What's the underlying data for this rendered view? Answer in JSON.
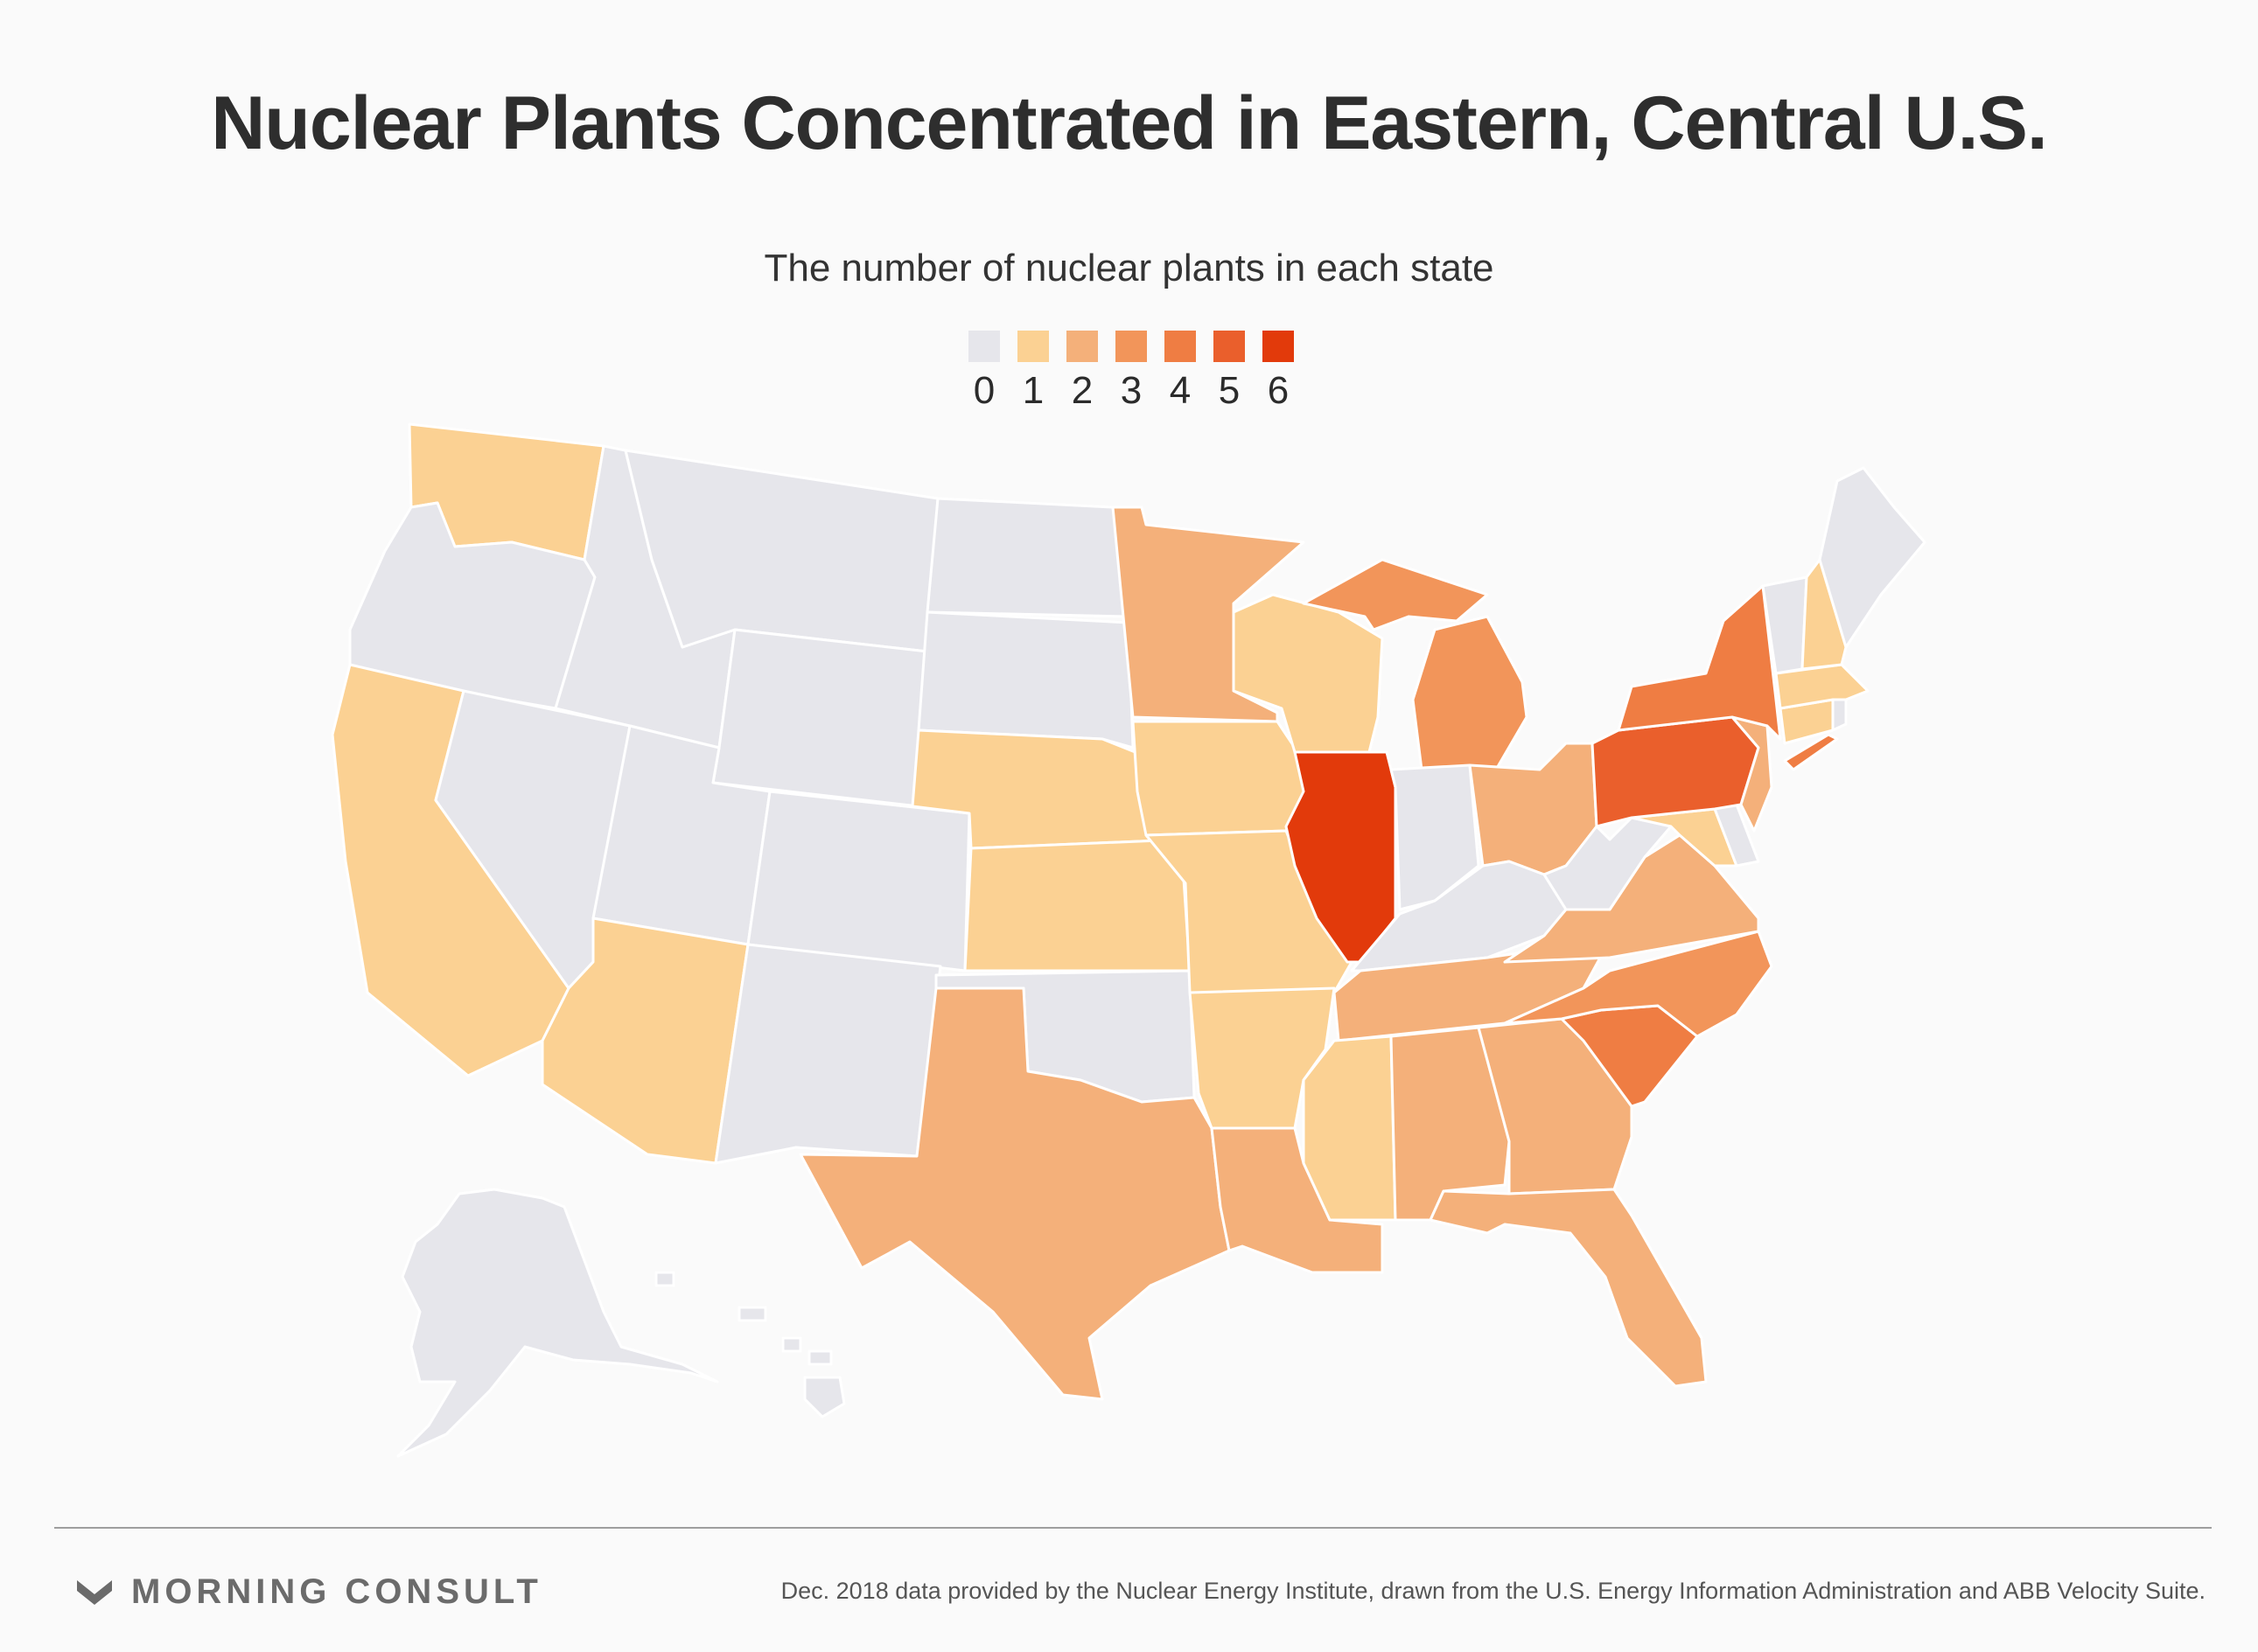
{
  "title": "Nuclear Plants Concentrated in Eastern, Central U.S.",
  "subtitle": "The number of nuclear plants in each state",
  "legend": {
    "items": [
      {
        "label": "0",
        "color": "#e6e6eb"
      },
      {
        "label": "1",
        "color": "#fbd193"
      },
      {
        "label": "2",
        "color": "#f4b07a"
      },
      {
        "label": "3",
        "color": "#f2955a"
      },
      {
        "label": "4",
        "color": "#ef7d43"
      },
      {
        "label": "5",
        "color": "#ea5f2c"
      },
      {
        "label": "6",
        "color": "#e23a0b"
      }
    ]
  },
  "chart_data": {
    "type": "choropleth",
    "value_range": [
      0,
      6
    ],
    "regions": [
      {
        "state": "Washington",
        "value": 1
      },
      {
        "state": "Oregon",
        "value": 0
      },
      {
        "state": "California",
        "value": 1
      },
      {
        "state": "Nevada",
        "value": 0
      },
      {
        "state": "Idaho",
        "value": 0
      },
      {
        "state": "Montana",
        "value": 0
      },
      {
        "state": "Wyoming",
        "value": 0
      },
      {
        "state": "Utah",
        "value": 0
      },
      {
        "state": "Arizona",
        "value": 1
      },
      {
        "state": "Colorado",
        "value": 0
      },
      {
        "state": "New Mexico",
        "value": 0
      },
      {
        "state": "North Dakota",
        "value": 0
      },
      {
        "state": "South Dakota",
        "value": 0
      },
      {
        "state": "Nebraska",
        "value": 1
      },
      {
        "state": "Kansas",
        "value": 1
      },
      {
        "state": "Oklahoma",
        "value": 0
      },
      {
        "state": "Texas",
        "value": 2
      },
      {
        "state": "Minnesota",
        "value": 2
      },
      {
        "state": "Iowa",
        "value": 1
      },
      {
        "state": "Missouri",
        "value": 1
      },
      {
        "state": "Arkansas",
        "value": 1
      },
      {
        "state": "Louisiana",
        "value": 2
      },
      {
        "state": "Wisconsin",
        "value": 1
      },
      {
        "state": "Illinois",
        "value": 6
      },
      {
        "state": "Michigan",
        "value": 3
      },
      {
        "state": "Indiana",
        "value": 0
      },
      {
        "state": "Ohio",
        "value": 2
      },
      {
        "state": "Kentucky",
        "value": 0
      },
      {
        "state": "Tennessee",
        "value": 2
      },
      {
        "state": "Mississippi",
        "value": 1
      },
      {
        "state": "Alabama",
        "value": 2
      },
      {
        "state": "Georgia",
        "value": 2
      },
      {
        "state": "Florida",
        "value": 2
      },
      {
        "state": "South Carolina",
        "value": 4
      },
      {
        "state": "North Carolina",
        "value": 3
      },
      {
        "state": "Virginia",
        "value": 2
      },
      {
        "state": "West Virginia",
        "value": 0
      },
      {
        "state": "Maryland",
        "value": 1
      },
      {
        "state": "Delaware",
        "value": 0
      },
      {
        "state": "Pennsylvania",
        "value": 5
      },
      {
        "state": "New Jersey",
        "value": 2
      },
      {
        "state": "New York",
        "value": 4
      },
      {
        "state": "Connecticut",
        "value": 1
      },
      {
        "state": "Rhode Island",
        "value": 0
      },
      {
        "state": "Massachusetts",
        "value": 1
      },
      {
        "state": "Vermont",
        "value": 0
      },
      {
        "state": "New Hampshire",
        "value": 1
      },
      {
        "state": "Maine",
        "value": 0
      },
      {
        "state": "Alaska",
        "value": 0
      },
      {
        "state": "Hawaii",
        "value": 0
      }
    ]
  },
  "footer": {
    "brand": "MORNING CONSULT",
    "source": "Dec. 2018 data provided by the Nuclear Energy Institute, drawn from the U.S. Energy Information Administration and ABB Velocity Suite."
  }
}
